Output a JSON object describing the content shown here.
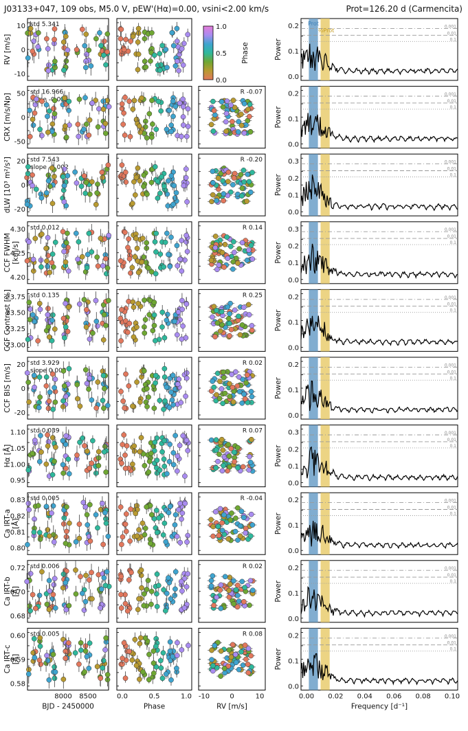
{
  "header": {
    "left": "J03133+047, 109 obs, M5.0 V, pEW'(Hα)=0.00, vsini<2.00 km/s",
    "right": "Prot=126.20 d (Carmencita)"
  },
  "colorbar": {
    "label": "Phase",
    "ticks": [
      "1.0",
      "0.5",
      "0.0"
    ],
    "colors": [
      "#e47cd8",
      "#a98cf0",
      "#3fa4cf",
      "#2fb89c",
      "#6fa733",
      "#b89a31",
      "#e2785d"
    ]
  },
  "periodogram": {
    "band_prot_label": "Prot",
    "band_half_label": "½Prot",
    "band_prot_color": "#6b9fc8",
    "band_half_color": "#e9cc6e",
    "fap_labels": [
      "0.001",
      "0.01",
      "0.1"
    ]
  },
  "chart_data": {
    "type": "scatter",
    "columns": [
      {
        "xlabel": "BJD - 2450000",
        "xticks": [
          "8000",
          "8500"
        ]
      },
      {
        "xlabel": "Phase",
        "xticks": [
          "0.0",
          "0.5",
          "1.0"
        ]
      },
      {
        "xlabel": "RV [m/s]",
        "xticks": [
          "-10",
          "0",
          "10"
        ]
      },
      {
        "xlabel": "Frequency [d⁻¹]",
        "xticks": [
          "0.00",
          "0.02",
          "0.04",
          "0.06",
          "0.08",
          "0.10"
        ]
      }
    ],
    "rows": [
      {
        "ylabel": [
          "RV [m/s]"
        ],
        "yticks": [
          "10",
          "0",
          "-10"
        ],
        "std": "std 5.341",
        "slope": "",
        "r": "",
        "pticks": [
          "0.2",
          "0.1",
          "0.0"
        ],
        "seed": 1
      },
      {
        "ylabel": [
          "CRX [m/s/Np]"
        ],
        "yticks": [
          "50",
          "0",
          "-50"
        ],
        "std": "std 16.966",
        "slope": "slope -0.025",
        "r": "R -0.07",
        "pticks": [
          "0.2",
          "0.1",
          "0.0"
        ],
        "seed": 2
      },
      {
        "ylabel": [
          "dLW [10³ m²/s²]"
        ],
        "yticks": [
          "20",
          "0",
          "-20"
        ],
        "std": "std 7.543",
        "slope": "slope -0.002",
        "r": "R -0.20",
        "pticks": [
          "0.3",
          "0.2",
          "0.1",
          "0.0"
        ],
        "seed": 3
      },
      {
        "ylabel": [
          "CCF FWHM",
          "[km/s]"
        ],
        "yticks": [
          "4.30",
          "4.25",
          "4.20"
        ],
        "std": "std 0.012",
        "slope": "",
        "r": "R 0.14",
        "pticks": [
          "0.3",
          "0.2",
          "0.1",
          "0.0"
        ],
        "seed": 4
      },
      {
        "ylabel": [
          "CCF Contrast [%]"
        ],
        "yticks": [
          "23.75",
          "23.50",
          "23.25",
          "23.00"
        ],
        "std": "std 0.135",
        "slope": "",
        "r": "R 0.25",
        "pticks": [
          "0.2",
          "0.1",
          "0.0"
        ],
        "seed": 5
      },
      {
        "ylabel": [
          "CCF BIS [m/s]"
        ],
        "yticks": [
          "20",
          "0",
          "-20"
        ],
        "std": "std 3.929",
        "slope": "slope 0.002",
        "r": "R 0.02",
        "pticks": [
          "0.2",
          "0.1",
          "0.0"
        ],
        "seed": 6
      },
      {
        "ylabel": [
          "Hα [Å]"
        ],
        "yticks": [
          "1.10",
          "1.05",
          "1.00",
          "0.95"
        ],
        "std": "std 0.039",
        "slope": "",
        "r": "R 0.07",
        "pticks": [
          "0.3",
          "0.2",
          "0.1",
          "0.0"
        ],
        "seed": 7
      },
      {
        "ylabel": [
          "Ca IRT-a",
          "[Å]"
        ],
        "yticks": [
          "0.83",
          "0.82",
          "0.81",
          "0.80"
        ],
        "std": "std 0.005",
        "slope": "",
        "r": "R -0.04",
        "pticks": [
          "0.2",
          "0.1",
          "0.0"
        ],
        "seed": 8
      },
      {
        "ylabel": [
          "Ca IRT-b",
          "[Å]"
        ],
        "yticks": [
          "0.72",
          "0.70",
          "0.68"
        ],
        "std": "std 0.006",
        "slope": "",
        "r": "R 0.02",
        "pticks": [
          "0.2",
          "0.1",
          "0.0"
        ],
        "seed": 9
      },
      {
        "ylabel": [
          "Ca IRT-c",
          "[Å]"
        ],
        "yticks": [
          "0.60",
          "0.59",
          "0.58"
        ],
        "std": "std 0.005",
        "slope": "",
        "r": "R 0.08",
        "pticks": [
          "0.2",
          "0.1",
          "0.0"
        ],
        "seed": 10
      }
    ]
  }
}
